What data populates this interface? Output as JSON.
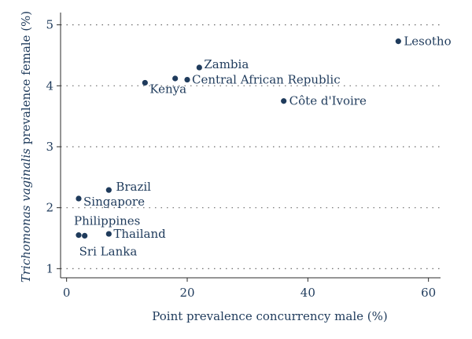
{
  "chart_data": {
    "type": "scatter",
    "title": "",
    "xlabel": "Point prevalence concurrency male (%)",
    "ylabel_italic": "Trichomonas vaginalis",
    "ylabel_rest": " prevalence female (%)",
    "xlim": [
      -1,
      62
    ],
    "ylim": [
      0.85,
      5.15
    ],
    "xticks": [
      0,
      20,
      40,
      60
    ],
    "yticks": [
      1,
      2,
      3,
      4,
      5
    ],
    "xtick_labels": [
      "0",
      "20",
      "40",
      "60"
    ],
    "ytick_labels": [
      "1",
      "2",
      "3",
      "4",
      "5"
    ],
    "grid": "horizontal dotted",
    "points": [
      {
        "label": "Lesotho",
        "x": 55,
        "y": 4.73
      },
      {
        "label": "Zambia",
        "x": 22,
        "y": 4.3
      },
      {
        "label": "Central African Republic",
        "x": 20,
        "y": 4.1
      },
      {
        "label": "",
        "x": 18,
        "y": 4.12
      },
      {
        "label": "Kenya",
        "x": 13,
        "y": 4.05
      },
      {
        "label": "Côte d'Ivoire",
        "x": 36,
        "y": 3.75
      },
      {
        "label": "Brazil",
        "x": 7,
        "y": 2.29
      },
      {
        "label": "Singapore",
        "x": 2,
        "y": 2.15
      },
      {
        "label": "Philippines",
        "x": 2,
        "y": 1.55
      },
      {
        "label": "Sri Lanka",
        "x": 3,
        "y": 1.54
      },
      {
        "label": "Thailand",
        "x": 7,
        "y": 1.57
      }
    ]
  }
}
